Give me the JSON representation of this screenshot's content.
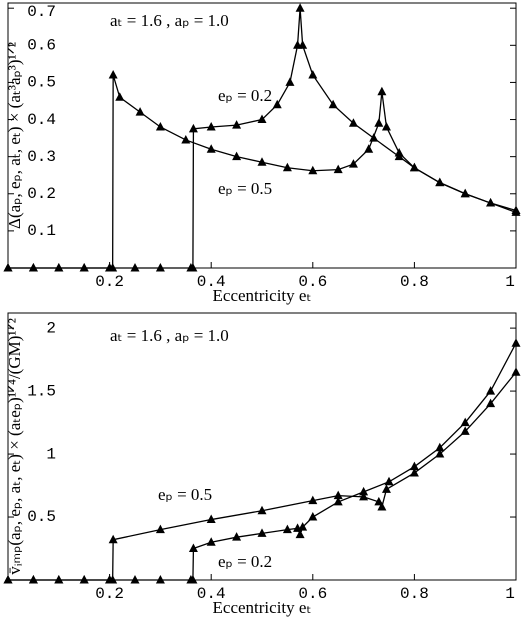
{
  "chart_data": [
    {
      "type": "line",
      "ylabel": "Δ(aₚ, eₚ, aₜ, eₜ) × (aₜ³aₚ³)¹ᐟ²",
      "xlabel": "Eccentricity eₜ",
      "annotations": [
        "aₜ = 1.6 , aₚ = 1.0",
        "eₚ = 0.2",
        "eₚ = 0.5"
      ],
      "xlim": [
        0,
        1
      ],
      "ylim": [
        0,
        0.714
      ],
      "xticks": [
        0.2,
        0.4,
        0.6,
        0.8,
        1
      ],
      "yticks": [
        0.1,
        0.2,
        0.3,
        0.4,
        0.5,
        0.6,
        0.7
      ],
      "series": [
        {
          "name": "eₚ = 0.5",
          "color": "#000",
          "x": [
            0,
            0.05,
            0.1,
            0.15,
            0.2,
            0.206,
            0.207,
            0.22,
            0.26,
            0.3,
            0.35,
            0.4,
            0.45,
            0.5,
            0.55,
            0.6,
            0.65,
            0.68,
            0.71,
            0.73,
            0.736,
            0.745,
            0.77,
            0.8,
            0.85,
            0.9,
            0.95,
            1.0
          ],
          "values": [
            0,
            0,
            0,
            0,
            0,
            0,
            0.52,
            0.46,
            0.42,
            0.38,
            0.345,
            0.32,
            0.3,
            0.285,
            0.27,
            0.262,
            0.265,
            0.28,
            0.32,
            0.39,
            0.475,
            0.38,
            0.31,
            0.27,
            0.23,
            0.2,
            0.175,
            0.15
          ]
        },
        {
          "name": "eₚ = 0.2",
          "color": "#000",
          "x": [
            0,
            0.05,
            0.1,
            0.15,
            0.2,
            0.25,
            0.3,
            0.36,
            0.364,
            0.365,
            0.4,
            0.45,
            0.5,
            0.53,
            0.555,
            0.57,
            0.575,
            0.58,
            0.6,
            0.64,
            0.68,
            0.72,
            0.77,
            0.8,
            0.85,
            0.9,
            0.95,
            1.0
          ],
          "values": [
            0,
            0,
            0,
            0,
            0,
            0,
            0,
            0,
            0,
            0.375,
            0.38,
            0.385,
            0.4,
            0.44,
            0.5,
            0.6,
            0.7,
            0.6,
            0.52,
            0.44,
            0.39,
            0.35,
            0.3,
            0.27,
            0.23,
            0.2,
            0.175,
            0.155
          ]
        }
      ]
    },
    {
      "type": "line",
      "ylabel": "v̄ᵢₘₚ(aₚ, eₚ, aₜ, eₜ) × (aₜeₚ)¹ᐟ⁴/(GM)¹ᐟ²",
      "xlabel": "Eccentricity eₜ",
      "annotations": [
        "aₜ = 1.6 , aₚ = 1.0",
        "eₚ = 0.5",
        "eₚ = 0.2"
      ],
      "xlim": [
        0,
        1
      ],
      "ylim": [
        0,
        2.12
      ],
      "xticks": [
        0.2,
        0.4,
        0.6,
        0.8,
        1
      ],
      "yticks": [
        0.5,
        1,
        1.5,
        2
      ],
      "series": [
        {
          "name": "eₚ = 0.5",
          "color": "#000",
          "x": [
            0,
            0.05,
            0.1,
            0.15,
            0.2,
            0.206,
            0.207,
            0.3,
            0.4,
            0.5,
            0.6,
            0.65,
            0.7,
            0.73,
            0.736,
            0.745,
            0.8,
            0.85,
            0.9,
            0.95,
            1.0
          ],
          "values": [
            0,
            0,
            0,
            0,
            0,
            0,
            0.32,
            0.4,
            0.48,
            0.55,
            0.63,
            0.67,
            0.66,
            0.62,
            0.58,
            0.72,
            0.85,
            1.0,
            1.18,
            1.4,
            1.65
          ]
        },
        {
          "name": "eₚ = 0.2",
          "color": "#000",
          "x": [
            0,
            0.05,
            0.1,
            0.15,
            0.2,
            0.25,
            0.3,
            0.36,
            0.364,
            0.365,
            0.4,
            0.45,
            0.5,
            0.55,
            0.57,
            0.575,
            0.58,
            0.6,
            0.65,
            0.7,
            0.75,
            0.8,
            0.85,
            0.9,
            0.95,
            1.0
          ],
          "values": [
            0,
            0,
            0,
            0,
            0,
            0,
            0,
            0,
            0,
            0.25,
            0.3,
            0.34,
            0.37,
            0.4,
            0.41,
            0.36,
            0.42,
            0.5,
            0.62,
            0.7,
            0.78,
            0.9,
            1.05,
            1.25,
            1.5,
            1.88
          ]
        }
      ]
    }
  ]
}
